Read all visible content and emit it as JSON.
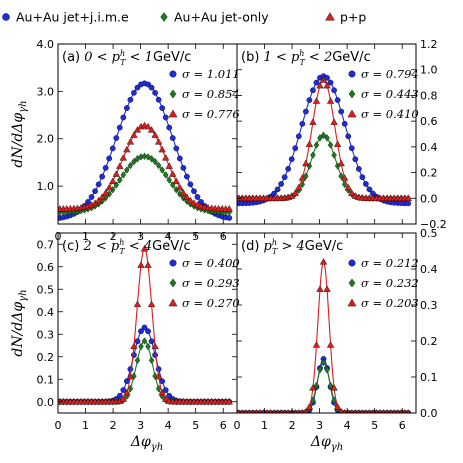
{
  "legend": [
    {
      "label": "Au+Au jet+j.i.m.e",
      "color": "#1f2bd6",
      "marker": "circle"
    },
    {
      "label": "Au+Au jet-only",
      "color": "#1e7a1e",
      "marker": "diamond"
    },
    {
      "label": "p+p",
      "color": "#d81e1e",
      "marker": "triangle"
    }
  ],
  "colors": {
    "blue": "#1f2bd6",
    "green": "#1e7a1e",
    "red": "#d81e1e"
  },
  "axes": {
    "xlabel": "Δφ_γh",
    "ylabel": "dN/dΔφ_γh"
  },
  "chart_data": [
    {
      "type": "line",
      "panel": "(a) 0 < p_T^h < 1GeV/c",
      "label_prefix": "(a) ",
      "label_math": "0 < p",
      "label_suffix": "GeV/c",
      "xlim": [
        0,
        6.5
      ],
      "ylim": [
        0.2,
        4.0
      ],
      "y_axis_side": "left",
      "xticks": [
        "0",
        "1",
        "2",
        "3",
        "4",
        "5",
        "6"
      ],
      "yticks": [
        {
          "v": 1.0,
          "t": "1.0"
        },
        {
          "v": 2.0,
          "t": "2.0"
        },
        {
          "v": 3.0,
          "t": "3.0"
        },
        {
          "v": 4.0,
          "t": "4.0"
        }
      ],
      "series": [
        {
          "name": "Au+Au jet+j.i.m.e",
          "sigma": "σ = 1.011",
          "base": 0.3,
          "peak": 3.17,
          "width": 1.011
        },
        {
          "name": "Au+Au jet-only",
          "sigma": "σ = 0.854",
          "base": 0.45,
          "peak": 1.63,
          "width": 0.854
        },
        {
          "name": "p+p",
          "sigma": "σ = 0.776",
          "base": 0.52,
          "peak": 2.28,
          "width": 0.776
        }
      ]
    },
    {
      "type": "line",
      "panel": "(b) 1 < p_T^h < 2GeV/c",
      "label_prefix": "(b) ",
      "label_math": "1 < p",
      "label_suffix": "GeV/c",
      "xlim": [
        0,
        6.5
      ],
      "ylim": [
        -0.2,
        1.2
      ],
      "y_axis_side": "right",
      "xticks": [],
      "yticks": [
        {
          "v": -0.2,
          "t": "−0.2"
        },
        {
          "v": 0.0,
          "t": "0.0"
        },
        {
          "v": 0.2,
          "t": "0.2"
        },
        {
          "v": 0.4,
          "t": "0.4"
        },
        {
          "v": 0.6,
          "t": "0.6"
        },
        {
          "v": 0.8,
          "t": "0.8"
        },
        {
          "v": 1.0,
          "t": "1.0"
        },
        {
          "v": 1.2,
          "t": "1.2"
        }
      ],
      "series": [
        {
          "name": "Au+Au jet+j.i.m.e",
          "sigma": "σ = 0.794",
          "base": -0.04,
          "peak": 0.95,
          "width": 0.794
        },
        {
          "name": "Au+Au jet-only",
          "sigma": "σ = 0.443",
          "base": 0.0,
          "peak": 0.49,
          "width": 0.443
        },
        {
          "name": "p+p",
          "sigma": "σ = 0.410",
          "base": 0.0,
          "peak": 0.92,
          "width": 0.41
        }
      ]
    },
    {
      "type": "line",
      "panel": "(c) 2 < p_T^h < 4GeV/c",
      "label_prefix": "(c) ",
      "label_math": "2 < p",
      "label_suffix": "GeV/c",
      "xlim": [
        0,
        6.5
      ],
      "ylim": [
        -0.05,
        0.75
      ],
      "y_axis_side": "left",
      "xticks": [
        "0",
        "1",
        "2",
        "3",
        "4",
        "5",
        "6"
      ],
      "yticks": [
        {
          "v": 0.0,
          "t": "0.0"
        },
        {
          "v": 0.1,
          "t": "0.1"
        },
        {
          "v": 0.2,
          "t": "0.2"
        },
        {
          "v": 0.3,
          "t": "0.3"
        },
        {
          "v": 0.4,
          "t": "0.4"
        },
        {
          "v": 0.5,
          "t": "0.5"
        },
        {
          "v": 0.6,
          "t": "0.6"
        },
        {
          "v": 0.7,
          "t": "0.7"
        }
      ],
      "series": [
        {
          "name": "Au+Au jet+j.i.m.e",
          "sigma": "σ = 0.400",
          "base": 0.0,
          "peak": 0.33,
          "width": 0.4
        },
        {
          "name": "Au+Au jet-only",
          "sigma": "σ = 0.293",
          "base": 0.0,
          "peak": 0.27,
          "width": 0.293
        },
        {
          "name": "p+p",
          "sigma": "σ = 0.270",
          "base": 0.0,
          "peak": 0.68,
          "width": 0.27
        }
      ]
    },
    {
      "type": "line",
      "panel": "(d) p_T^h > 4GeV/c",
      "label_prefix": "(d) ",
      "label_math": "p",
      "label_suffix": "GeV/c",
      "xlim": [
        0,
        6.5
      ],
      "ylim": [
        0.0,
        0.5
      ],
      "y_axis_side": "right",
      "xticks": [
        "0",
        "1",
        "2",
        "3",
        "4",
        "5",
        "6"
      ],
      "yticks": [
        {
          "v": 0.0,
          "t": "0.0"
        },
        {
          "v": 0.1,
          "t": "0.1"
        },
        {
          "v": 0.2,
          "t": "0.2"
        },
        {
          "v": 0.3,
          "t": "0.3"
        },
        {
          "v": 0.4,
          "t": "0.4"
        },
        {
          "v": 0.5,
          "t": "0.5"
        }
      ],
      "series": [
        {
          "name": "Au+Au jet+j.i.m.e",
          "sigma": "σ = 0.212",
          "base": 0.0,
          "peak": 0.15,
          "width": 0.212
        },
        {
          "name": "Au+Au jet-only",
          "sigma": "σ = 0.232",
          "base": 0.0,
          "peak": 0.14,
          "width": 0.232
        },
        {
          "name": "p+p",
          "sigma": "σ = 0.203",
          "base": 0.0,
          "peak": 0.42,
          "width": 0.203
        }
      ]
    }
  ]
}
